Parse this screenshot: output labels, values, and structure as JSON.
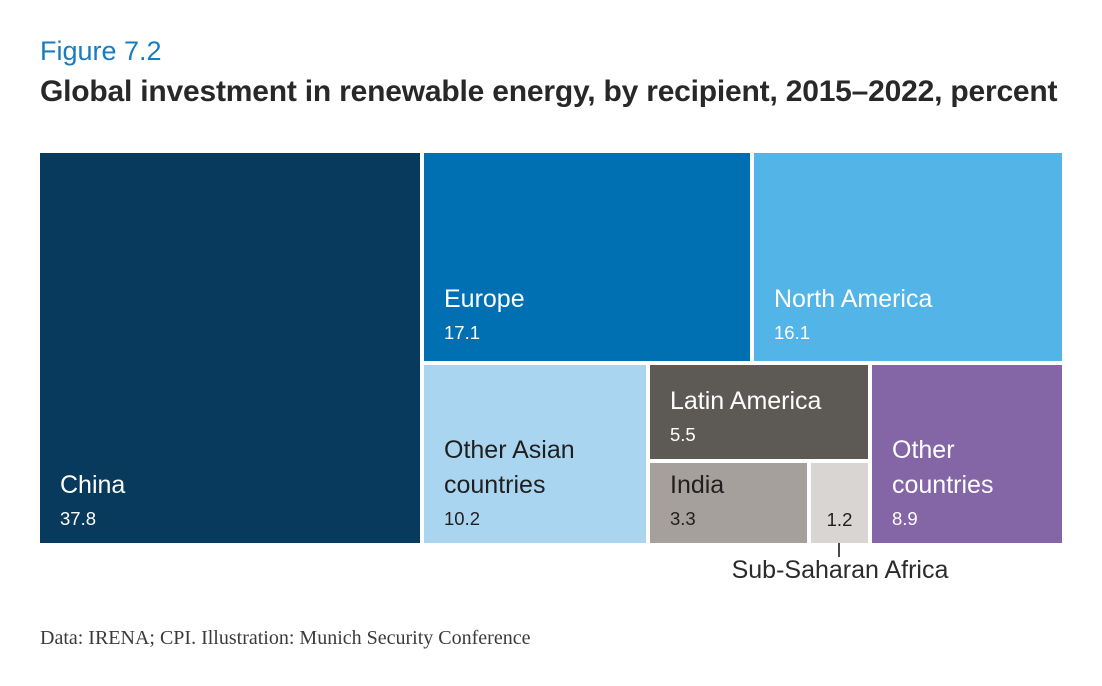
{
  "figure": {
    "label": "Figure 7.2",
    "title": "Global investment in renewable energy, by recipient, 2015–2022, percent",
    "source": "Data: IRENA; CPI. Illustration: Munich Security Conference"
  },
  "colors": {
    "figure_label": "#187cc0",
    "figure_title": "#282828",
    "background": "#ffffff",
    "callout_line": "#4a4a4a",
    "source_text": "#3b3b3b"
  },
  "chart_data": {
    "type": "treemap",
    "title": "Global investment in renewable energy, by recipient, 2015–2022, percent",
    "unit": "percent",
    "period": "2015–2022",
    "legend_position": "none",
    "items": [
      {
        "name": "China",
        "value": 37.8,
        "color": "#083a5d",
        "text_color": "#ffffff"
      },
      {
        "name": "Europe",
        "value": 17.1,
        "color": "#0070b2",
        "text_color": "#ffffff"
      },
      {
        "name": "North America",
        "value": 16.1,
        "color": "#53b4e7",
        "text_color": "#ffffff"
      },
      {
        "name": "Other Asian countries",
        "value": 10.2,
        "color": "#aad5f1",
        "text_color": "#1f1f1f"
      },
      {
        "name": "Latin America",
        "value": 5.5,
        "color": "#5d5955",
        "text_color": "#ffffff"
      },
      {
        "name": "India",
        "value": 3.3,
        "color": "#a5a09c",
        "text_color": "#1f1f1f"
      },
      {
        "name": "Sub-Saharan Africa",
        "value": 1.2,
        "color": "#d9d5d2",
        "text_color": "#1f1f1f"
      },
      {
        "name": "Other countries",
        "value": 8.9,
        "color": "#8466a7",
        "text_color": "#ffffff"
      }
    ],
    "annotation": {
      "label": "Sub-Saharan Africa",
      "note": "labelled outside the treemap with a callout line; only the value 1.2 appears inside its cell"
    }
  }
}
